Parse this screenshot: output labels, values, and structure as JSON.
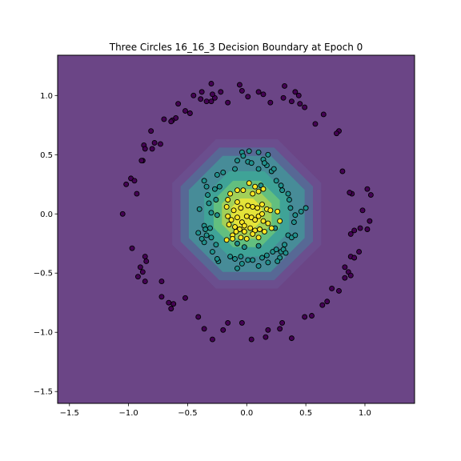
{
  "chart_data": {
    "type": "scatter",
    "title": "Three Circles 16_16_3 Decision Boundary at Epoch 0",
    "xlabel": "",
    "ylabel": "",
    "xlim": [
      -1.6,
      1.42
    ],
    "ylim": [
      -1.6,
      1.34
    ],
    "x_ticks": [
      -1.5,
      -1.0,
      -0.5,
      0.0,
      0.5,
      1.0
    ],
    "x_tick_labels": [
      "−1.5",
      "−1.0",
      "−0.5",
      "0.0",
      "0.5",
      "1.0"
    ],
    "y_ticks": [
      -1.5,
      -1.0,
      -0.5,
      0.0,
      0.5,
      1.0
    ],
    "y_tick_labels": [
      "−1.5",
      "−1.0",
      "−0.5",
      "0.0",
      "0.5",
      "1.0"
    ],
    "grid": false,
    "background_color": "#6b4586",
    "contour_levels": [
      {
        "level": 1,
        "radius": 0.63,
        "color": "#6b4e8e"
      },
      {
        "level": 2,
        "radius": 0.56,
        "color": "#576895"
      },
      {
        "level": 3,
        "radius": 0.49,
        "color": "#478c98"
      },
      {
        "level": 4,
        "radius": 0.36,
        "color": "#3fa397"
      },
      {
        "level": 5,
        "radius": 0.28,
        "color": "#62bf7f"
      },
      {
        "level": 6,
        "radius": 0.21,
        "color": "#a3d058"
      },
      {
        "level": 7,
        "radius": 0.13,
        "color": "#e4e43a"
      }
    ],
    "series": [
      {
        "class": 0,
        "color": "#440154",
        "points": [
          [
            -1.05,
            0.0
          ],
          [
            -1.02,
            0.25
          ],
          [
            -0.98,
            0.3
          ],
          [
            -0.95,
            0.28
          ],
          [
            -0.93,
            0.17
          ],
          [
            -0.97,
            -0.29
          ],
          [
            -0.9,
            -0.45
          ],
          [
            -0.85,
            -0.4
          ],
          [
            -0.86,
            -0.36
          ],
          [
            -0.88,
            -0.49
          ],
          [
            -0.92,
            -0.53
          ],
          [
            -0.86,
            -0.57
          ],
          [
            -0.72,
            -0.57
          ],
          [
            -0.72,
            -0.7
          ],
          [
            -0.66,
            -0.75
          ],
          [
            -0.62,
            -0.76
          ],
          [
            -0.64,
            -0.8
          ],
          [
            -0.52,
            -0.71
          ],
          [
            -0.41,
            -0.87
          ],
          [
            -0.36,
            -0.97
          ],
          [
            -0.29,
            -1.06
          ],
          [
            -0.2,
            -0.98
          ],
          [
            -0.16,
            -0.92
          ],
          [
            -0.04,
            -0.92
          ],
          [
            0.04,
            -1.06
          ],
          [
            0.16,
            -1.04
          ],
          [
            0.18,
            -0.98
          ],
          [
            0.28,
            -0.97
          ],
          [
            0.3,
            -0.92
          ],
          [
            0.38,
            -1.05
          ],
          [
            0.49,
            -0.87
          ],
          [
            0.55,
            -0.86
          ],
          [
            0.64,
            -0.77
          ],
          [
            0.68,
            -0.74
          ],
          [
            0.72,
            -0.63
          ],
          [
            0.78,
            -0.65
          ],
          [
            0.83,
            -0.54
          ],
          [
            0.86,
            -0.49
          ],
          [
            0.88,
            -0.36
          ],
          [
            0.91,
            -0.37
          ],
          [
            0.95,
            -0.32
          ],
          [
            0.83,
            -0.45
          ],
          [
            0.88,
            -0.52
          ],
          [
            0.88,
            -0.17
          ],
          [
            0.91,
            -0.14
          ],
          [
            0.96,
            -0.12
          ],
          [
            1.02,
            -0.13
          ],
          [
            1.04,
            -0.06
          ],
          [
            0.98,
            0.03
          ],
          [
            1.05,
            0.16
          ],
          [
            1.02,
            0.21
          ],
          [
            0.89,
            0.17
          ],
          [
            0.87,
            0.18
          ],
          [
            0.81,
            0.36
          ],
          [
            0.78,
            0.7
          ],
          [
            0.76,
            0.68
          ],
          [
            0.65,
            0.84
          ],
          [
            0.58,
            0.76
          ],
          [
            0.49,
            0.9
          ],
          [
            0.45,
            0.93
          ],
          [
            0.44,
            1.0
          ],
          [
            0.41,
            1.03
          ],
          [
            0.38,
            0.95
          ],
          [
            0.31,
            0.98
          ],
          [
            0.32,
            1.08
          ],
          [
            0.2,
            0.94
          ],
          [
            0.14,
            1.01
          ],
          [
            0.1,
            1.03
          ],
          [
            0.01,
            0.99
          ],
          [
            -0.04,
            1.04
          ],
          [
            -0.06,
            1.09
          ],
          [
            -0.16,
            0.94
          ],
          [
            -0.22,
            1.03
          ],
          [
            -0.27,
            0.98
          ],
          [
            -0.3,
            0.95
          ],
          [
            -0.29,
            1.01
          ],
          [
            -0.34,
            0.95
          ],
          [
            -0.39,
            0.97
          ],
          [
            -0.45,
            1.0
          ],
          [
            -0.38,
            1.03
          ],
          [
            -0.3,
            1.1
          ],
          [
            -0.48,
            0.85
          ],
          [
            -0.52,
            0.87
          ],
          [
            -0.58,
            0.93
          ],
          [
            -0.6,
            0.81
          ],
          [
            -0.63,
            0.79
          ],
          [
            -0.64,
            0.78
          ],
          [
            -0.7,
            0.8
          ],
          [
            -0.78,
            0.6
          ],
          [
            -0.8,
            0.55
          ],
          [
            -0.81,
            0.7
          ],
          [
            -0.87,
            0.58
          ],
          [
            -0.86,
            0.55
          ],
          [
            -0.88,
            0.45
          ],
          [
            -0.89,
            0.45
          ],
          [
            -0.73,
            0.59
          ]
        ]
      },
      {
        "class": 1,
        "color": "#21918c",
        "points": [
          [
            -0.1,
            0.38
          ],
          [
            -0.08,
            0.45
          ],
          [
            0.01,
            0.44
          ],
          [
            0.04,
            0.43
          ],
          [
            0.1,
            0.38
          ],
          [
            0.17,
            0.41
          ],
          [
            -0.04,
            0.52
          ],
          [
            -0.03,
            0.49
          ],
          [
            0.1,
            0.52
          ],
          [
            0.02,
            0.53
          ],
          [
            0.14,
            0.46
          ],
          [
            0.15,
            0.43
          ],
          [
            0.18,
            0.5
          ],
          [
            0.21,
            0.36
          ],
          [
            0.23,
            0.38
          ],
          [
            -0.2,
            0.35
          ],
          [
            -0.25,
            0.33
          ],
          [
            -0.36,
            0.28
          ],
          [
            -0.34,
            0.23
          ],
          [
            -0.27,
            0.21
          ],
          [
            -0.23,
            0.23
          ],
          [
            -0.33,
            0.16
          ],
          [
            -0.26,
            0.12
          ],
          [
            -0.32,
            0.09
          ],
          [
            -0.4,
            0.04
          ],
          [
            -0.3,
            0.01
          ],
          [
            -0.25,
            -0.01
          ],
          [
            -0.36,
            -0.1
          ],
          [
            -0.31,
            -0.12
          ],
          [
            -0.41,
            -0.16
          ],
          [
            -0.35,
            -0.13
          ],
          [
            -0.34,
            -0.18
          ],
          [
            -0.3,
            -0.2
          ],
          [
            -0.26,
            -0.26
          ],
          [
            -0.36,
            -0.24
          ],
          [
            -0.38,
            -0.21
          ],
          [
            -0.29,
            -0.32
          ],
          [
            -0.24,
            -0.4
          ],
          [
            -0.25,
            -0.38
          ],
          [
            -0.14,
            -0.36
          ],
          [
            -0.1,
            -0.38
          ],
          [
            -0.05,
            -0.36
          ],
          [
            -0.04,
            -0.42
          ],
          [
            -0.08,
            -0.46
          ],
          [
            0.01,
            -0.39
          ],
          [
            0.05,
            -0.39
          ],
          [
            0.13,
            -0.37
          ],
          [
            0.17,
            -0.35
          ],
          [
            0.18,
            -0.41
          ],
          [
            0.1,
            -0.44
          ],
          [
            0.22,
            -0.32
          ],
          [
            0.25,
            -0.3
          ],
          [
            0.29,
            -0.32
          ],
          [
            0.32,
            -0.26
          ],
          [
            0.31,
            -0.3
          ],
          [
            0.33,
            -0.33
          ],
          [
            0.28,
            -0.37
          ],
          [
            0.26,
            -0.4
          ],
          [
            0.35,
            -0.18
          ],
          [
            0.38,
            -0.2
          ],
          [
            0.41,
            -0.18
          ],
          [
            0.4,
            -0.07
          ],
          [
            0.41,
            -0.01
          ],
          [
            0.46,
            0.02
          ],
          [
            0.5,
            0.05
          ],
          [
            0.37,
            0.05
          ],
          [
            0.36,
            0.12
          ],
          [
            0.35,
            0.17
          ],
          [
            0.3,
            0.2
          ],
          [
            0.29,
            0.24
          ],
          [
            0.25,
            0.28
          ],
          [
            0.12,
            0.24
          ],
          [
            -0.02,
            -0.28
          ],
          [
            0.1,
            -0.27
          ],
          [
            -0.08,
            -0.25
          ],
          [
            0.24,
            -0.12
          ]
        ]
      },
      {
        "class": 2,
        "color": "#fde725",
        "points": [
          [
            -0.16,
            0.12
          ],
          [
            -0.14,
            0.17
          ],
          [
            -0.08,
            0.2
          ],
          [
            -0.03,
            0.2
          ],
          [
            0.05,
            0.17
          ],
          [
            0.1,
            0.19
          ],
          [
            0.14,
            0.21
          ],
          [
            0.07,
            0.23
          ],
          [
            0.02,
            0.26
          ],
          [
            -0.08,
            0.1
          ],
          [
            -0.17,
            0.06
          ],
          [
            -0.11,
            0.03
          ],
          [
            -0.05,
            0.05
          ],
          [
            0.01,
            0.07
          ],
          [
            0.05,
            0.06
          ],
          [
            0.09,
            0.05
          ],
          [
            0.13,
            0.08
          ],
          [
            0.17,
            0.04
          ],
          [
            0.2,
            0.03
          ],
          [
            0.26,
            0.02
          ],
          [
            0.28,
            -0.06
          ],
          [
            -0.16,
            -0.02
          ],
          [
            -0.13,
            -0.05
          ],
          [
            -0.08,
            -0.03
          ],
          [
            -0.04,
            -0.07
          ],
          [
            0.0,
            -0.02
          ],
          [
            0.04,
            -0.03
          ],
          [
            0.07,
            -0.05
          ],
          [
            0.1,
            -0.02
          ],
          [
            0.14,
            -0.06
          ],
          [
            0.18,
            -0.08
          ],
          [
            0.21,
            -0.12
          ],
          [
            -0.15,
            -0.09
          ],
          [
            -0.1,
            -0.11
          ],
          [
            -0.06,
            -0.13
          ],
          [
            -0.02,
            -0.1
          ],
          [
            0.03,
            -0.12
          ],
          [
            0.07,
            -0.14
          ],
          [
            0.11,
            -0.13
          ],
          [
            0.15,
            -0.15
          ],
          [
            -0.12,
            -0.18
          ],
          [
            -0.05,
            -0.2
          ],
          [
            0.0,
            -0.21
          ],
          [
            0.05,
            -0.17
          ],
          [
            0.1,
            -0.2
          ],
          [
            -0.17,
            -0.22
          ],
          [
            -0.09,
            -0.15
          ],
          [
            0.13,
            0.0
          ],
          [
            -0.12,
            -0.21
          ],
          [
            -0.02,
            -0.15
          ]
        ]
      }
    ]
  }
}
